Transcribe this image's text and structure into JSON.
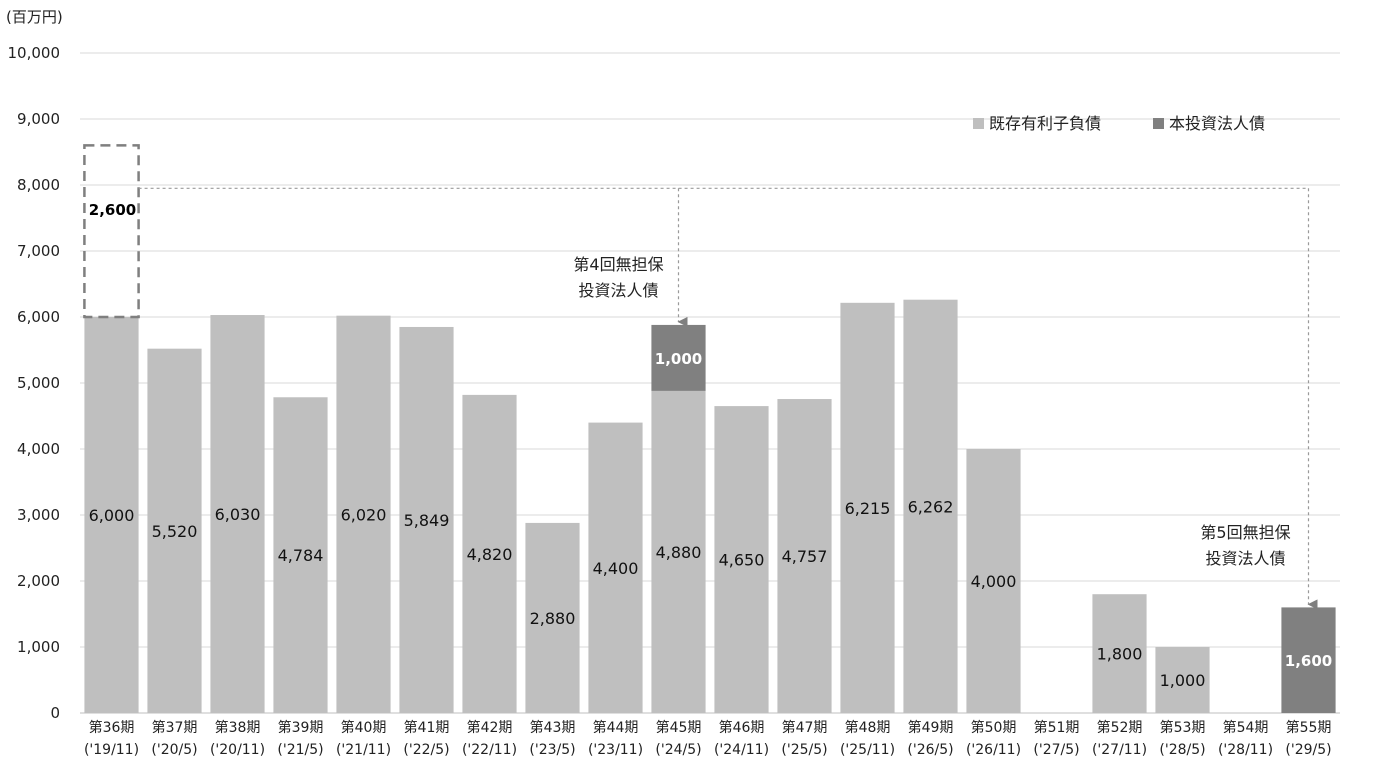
{
  "chart_data": {
    "type": "bar",
    "unit_label": "(百万円)",
    "ylim": [
      0,
      10000
    ],
    "yticks": [
      "0",
      "1,000",
      "2,000",
      "3,000",
      "4,000",
      "5,000",
      "6,000",
      "7,000",
      "8,000",
      "9,000",
      "10,000"
    ],
    "grid": true,
    "legend_position": "top-right",
    "categories": [
      {
        "period": "第36期",
        "date": "('19/11)"
      },
      {
        "period": "第37期",
        "date": "('20/5)"
      },
      {
        "period": "第38期",
        "date": "('20/11)"
      },
      {
        "period": "第39期",
        "date": "('21/5)"
      },
      {
        "period": "第40期",
        "date": "('21/11)"
      },
      {
        "period": "第41期",
        "date": "('22/5)"
      },
      {
        "period": "第42期",
        "date": "('22/11)"
      },
      {
        "period": "第43期",
        "date": "('23/5)"
      },
      {
        "period": "第44期",
        "date": "('23/11)"
      },
      {
        "period": "第45期",
        "date": "('24/5)"
      },
      {
        "period": "第46期",
        "date": "('24/11)"
      },
      {
        "period": "第47期",
        "date": "('25/5)"
      },
      {
        "period": "第48期",
        "date": "('25/11)"
      },
      {
        "period": "第49期",
        "date": "('26/5)"
      },
      {
        "period": "第50期",
        "date": "('26/11)"
      },
      {
        "period": "第51期",
        "date": "('27/5)"
      },
      {
        "period": "第52期",
        "date": "('27/11)"
      },
      {
        "period": "第53期",
        "date": "('28/5)"
      },
      {
        "period": "第54期",
        "date": "('28/11)"
      },
      {
        "period": "第55期",
        "date": "('29/5)"
      }
    ],
    "series": [
      {
        "name": "既存有利子負債",
        "color": "#bfbfbf",
        "values": [
          6000,
          5520,
          6030,
          4784,
          6020,
          5849,
          4820,
          2880,
          4400,
          4880,
          4650,
          4757,
          6215,
          6262,
          4000,
          0,
          1800,
          1000,
          0,
          0
        ],
        "labels": [
          "6,000",
          "5,520",
          "6,030",
          "4,784",
          "6,020",
          "5,849",
          "4,820",
          "2,880",
          "4,400",
          "4,880",
          "4,650",
          "4,757",
          "6,215",
          "6,262",
          "4,000",
          "",
          "1,800",
          "1,000",
          "",
          ""
        ]
      },
      {
        "name": "本投資法人債",
        "color": "#808080",
        "values": [
          0,
          0,
          0,
          0,
          0,
          0,
          0,
          0,
          0,
          1000,
          0,
          0,
          0,
          0,
          0,
          0,
          0,
          0,
          0,
          1600
        ],
        "labels": [
          "",
          "",
          "",
          "",
          "",
          "",
          "",
          "",
          "",
          "1,000",
          "",
          "",
          "",
          "",
          "",
          "",
          "",
          "",
          "",
          "1,600"
        ]
      }
    ],
    "dashed_box": {
      "category_index": 0,
      "base": 6000,
      "value": 2600,
      "label": "2,600",
      "color": "#7f7f7f"
    },
    "annotations": [
      {
        "lines": [
          "第4回無担保",
          "投資法人債"
        ],
        "target_index": 9
      },
      {
        "lines": [
          "第5回無担保",
          "投資法人債"
        ],
        "target_index": 19
      }
    ]
  }
}
